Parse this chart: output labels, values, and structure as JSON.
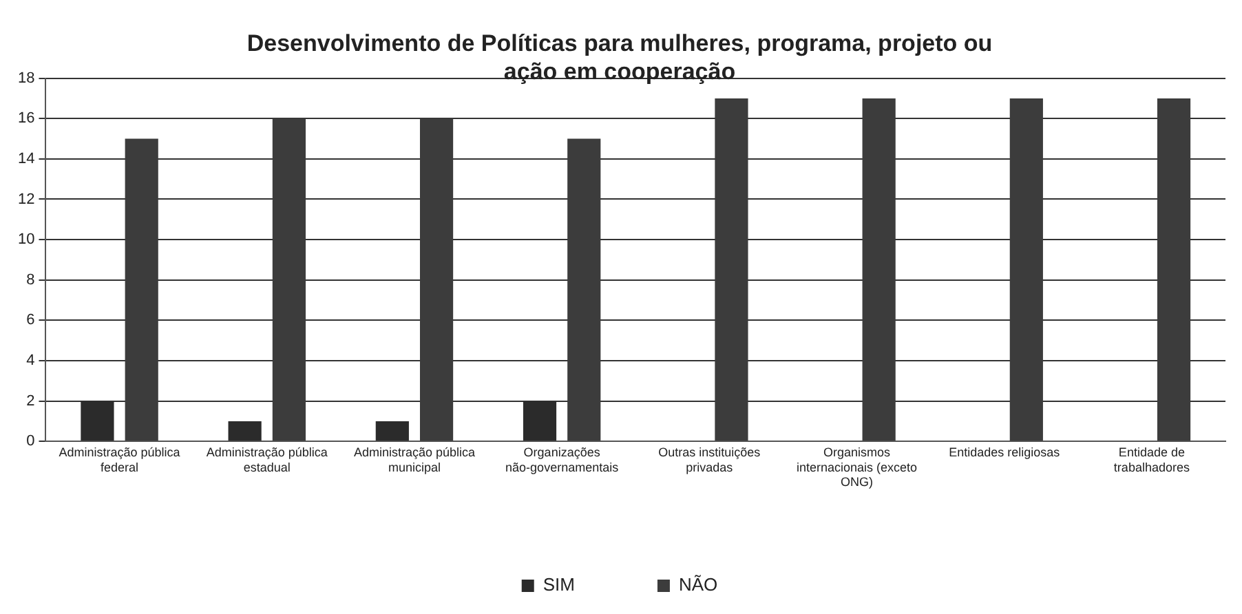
{
  "chart_data": {
    "type": "bar",
    "title": "Desenvolvimento de Políticas para mulheres, programa, projeto ou ação em cooperação",
    "categories": [
      "Administração pública federal",
      "Administração pública estadual",
      "Administração pública municipal",
      "Organizações não-governamentais",
      "Outras instituições privadas",
      "Organismos internacionais (exceto ONG)",
      "Entidades religiosas",
      "Entidade de trabalhadores"
    ],
    "series": [
      {
        "name": "SIM",
        "color": "#2b2b2b",
        "values": [
          2,
          1,
          1,
          2,
          0,
          0,
          0,
          0
        ]
      },
      {
        "name": "NÃO",
        "color": "#3c3c3c",
        "values": [
          15,
          16,
          16,
          15,
          17,
          17,
          17,
          17
        ]
      }
    ],
    "ylim": [
      0,
      18
    ],
    "yticks": [
      0,
      2,
      4,
      6,
      8,
      10,
      12,
      14,
      16,
      18
    ],
    "grid": "y",
    "legend": "bottom"
  }
}
